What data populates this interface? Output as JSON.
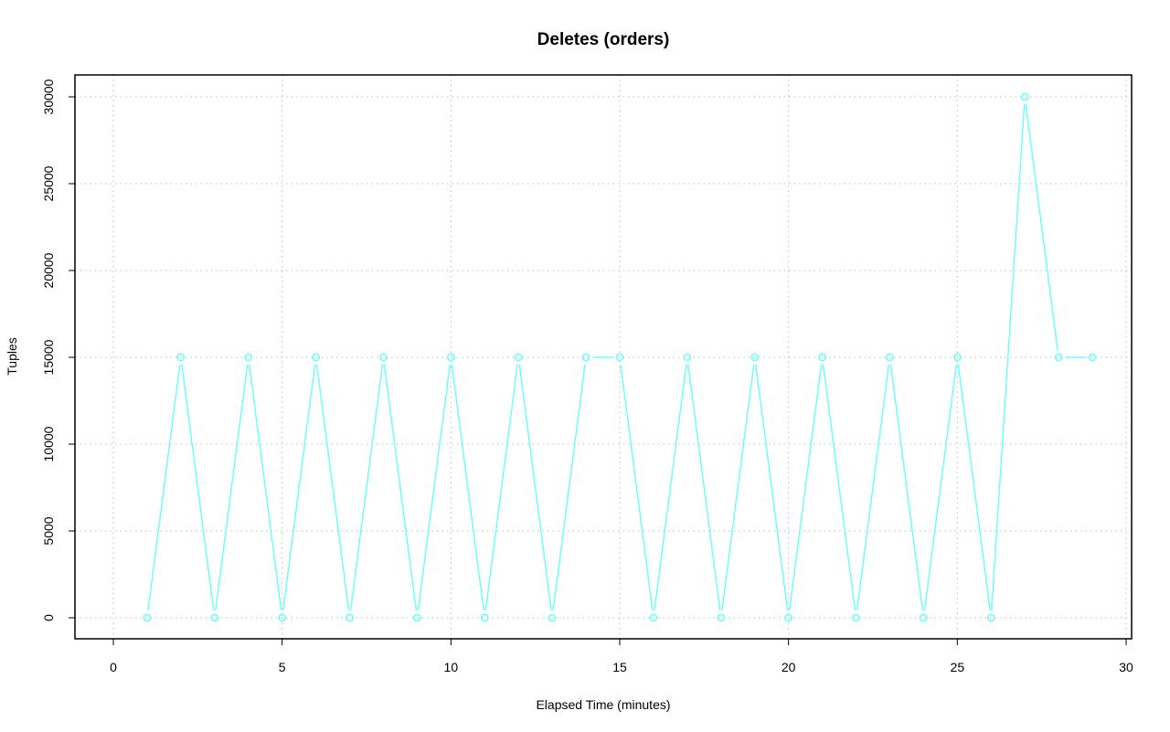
{
  "chart_data": {
    "type": "line",
    "title": "Deletes (orders)",
    "xlabel": "Elapsed Time (minutes)",
    "ylabel": "Tuples",
    "xlim": [
      0,
      30
    ],
    "ylim": [
      0,
      30000
    ],
    "x_ticks": [
      "0",
      "5",
      "10",
      "15",
      "20",
      "25",
      "30"
    ],
    "y_ticks": [
      "0",
      "5000",
      "10000",
      "15000",
      "20000",
      "25000",
      "30000"
    ],
    "grid": true,
    "grid_style": "dotted",
    "series_color": "#66ffff",
    "series": [
      {
        "x": [
          1,
          2,
          3,
          4,
          5,
          6,
          7,
          8,
          9,
          10,
          11,
          12,
          13,
          14,
          15,
          16,
          17,
          18,
          19,
          20,
          21,
          22,
          23,
          24,
          25,
          26,
          27,
          28,
          29
        ],
        "values": [
          0,
          15000,
          0,
          15000,
          0,
          15000,
          0,
          15000,
          0,
          15000,
          0,
          15000,
          0,
          15000,
          15000,
          0,
          15000,
          0,
          15000,
          0,
          15000,
          0,
          15000,
          0,
          15000,
          0,
          30000,
          15000,
          15000
        ]
      }
    ]
  }
}
